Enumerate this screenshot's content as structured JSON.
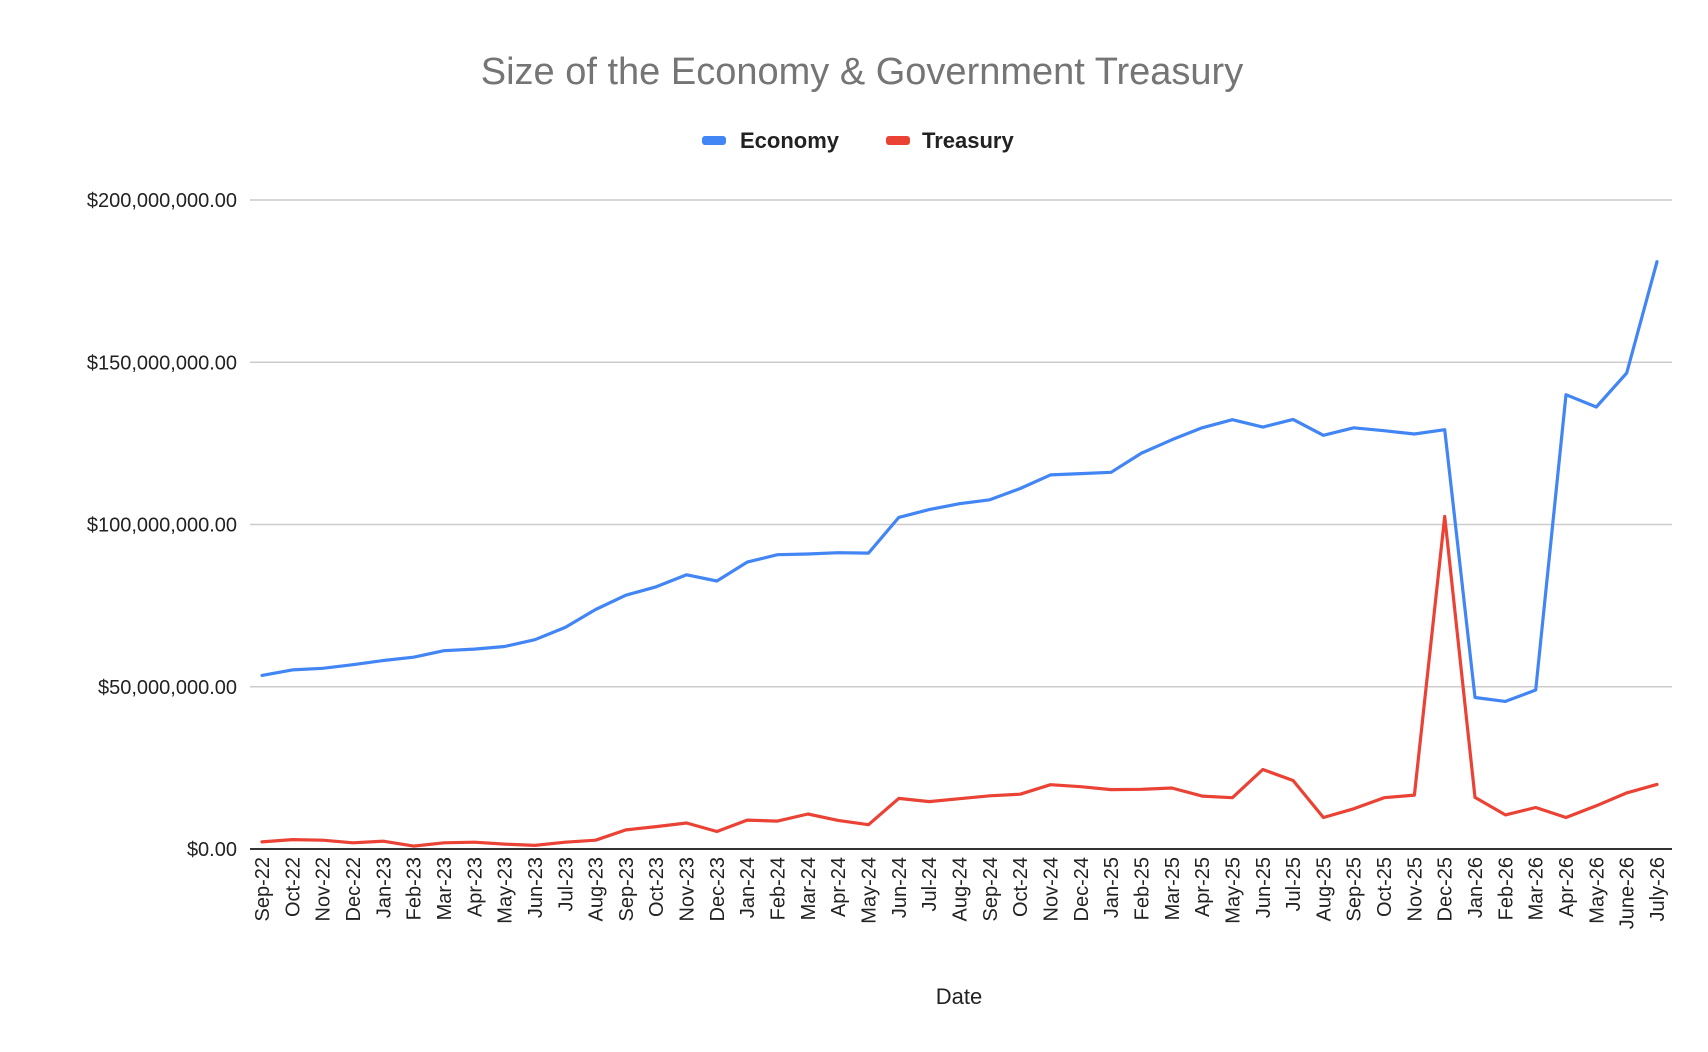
{
  "chart_data": {
    "type": "line",
    "title": "Size of the Economy & Government Treasury",
    "xlabel": "Date",
    "ylabel": "",
    "ylim": [
      0,
      200000000
    ],
    "yticks": [
      {
        "value": 0,
        "label": "$0.00"
      },
      {
        "value": 50000000,
        "label": "$50,000,000.00"
      },
      {
        "value": 100000000,
        "label": "$100,000,000.00"
      },
      {
        "value": 150000000,
        "label": "$150,000,000.00"
      },
      {
        "value": 200000000,
        "label": "$200,000,000.00"
      }
    ],
    "grid": true,
    "legend_position": "top",
    "categories": [
      "Sep-22",
      "Oct-22",
      "Nov-22",
      "Dec-22",
      "Jan-23",
      "Feb-23",
      "Mar-23",
      "Apr-23",
      "May-23",
      "Jun-23",
      "Jul-23",
      "Aug-23",
      "Sep-23",
      "Oct-23",
      "Nov-23",
      "Dec-23",
      "Jan-24",
      "Feb-24",
      "Mar-24",
      "Apr-24",
      "May-24",
      "Jun-24",
      "Jul-24",
      "Aug-24",
      "Sep-24",
      "Oct-24",
      "Nov-24",
      "Dec-24",
      "Jan-25",
      "Feb-25",
      "Mar-25",
      "Apr-25",
      "May-25",
      "Jun-25",
      "Jul-25",
      "Aug-25",
      "Sep-25",
      "Oct-25",
      "Nov-25",
      "Dec-25",
      "Jan-26",
      "Feb-26",
      "Mar-26",
      "Apr-26",
      "May-26",
      "June-26",
      "July-26"
    ],
    "series": [
      {
        "name": "Economy",
        "color": "#4285f4",
        "values": [
          53500000,
          55200000,
          55700000,
          56800000,
          58100000,
          59100000,
          61100000,
          61600000,
          62400000,
          64500000,
          68300000,
          73800000,
          78200000,
          80800000,
          84500000,
          82600000,
          88400000,
          90700000,
          90900000,
          91300000,
          91200000,
          102200000,
          104600000,
          106400000,
          107600000,
          111100000,
          115300000,
          115700000,
          116100000,
          122000000,
          126100000,
          129800000,
          132300000,
          130000000,
          132400000,
          127500000,
          129800000,
          128900000,
          127900000,
          129200000,
          46700000,
          45500000,
          49000000,
          140000000,
          136200000,
          146700000,
          181000000
        ]
      },
      {
        "name": "Treasury",
        "color": "#ea4335",
        "values": [
          2200000,
          2900000,
          2700000,
          1900000,
          2400000,
          900000,
          1900000,
          2100000,
          1500000,
          1100000,
          2100000,
          2700000,
          5900000,
          6900000,
          8000000,
          5400000,
          8900000,
          8600000,
          10800000,
          8800000,
          7500000,
          15600000,
          14600000,
          15500000,
          16400000,
          16900000,
          19800000,
          19200000,
          18300000,
          18400000,
          18800000,
          16300000,
          15800000,
          24500000,
          21100000,
          9700000,
          12400000,
          15800000,
          16600000,
          102500000,
          15900000,
          10500000,
          12800000,
          9700000,
          13300000,
          17300000,
          19900000
        ]
      }
    ]
  }
}
